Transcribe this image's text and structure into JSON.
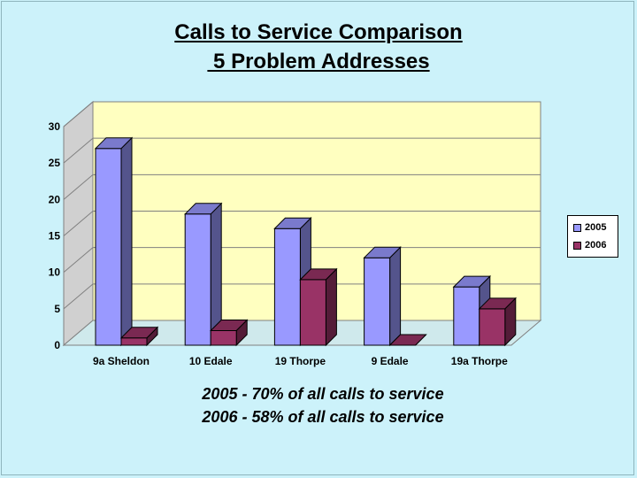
{
  "chart_data": {
    "type": "bar",
    "title_line1": "Calls to Service Comparison",
    "title_line2": " 5 Problem Addresses",
    "categories": [
      "9a Sheldon",
      "10 Edale",
      "19 Thorpe",
      "9 Edale",
      "19a Thorpe"
    ],
    "series": [
      {
        "name": "2005",
        "values": [
          27,
          18,
          16,
          12,
          8
        ],
        "color": "#9999ff"
      },
      {
        "name": "2006",
        "values": [
          1,
          2,
          9,
          0,
          5
        ],
        "color": "#993366"
      }
    ],
    "ylim": [
      0,
      30
    ],
    "yticks": [
      0,
      5,
      10,
      15,
      20,
      25,
      30
    ],
    "grid": true,
    "legend_position": "right",
    "plot_background": "#ffffc0"
  },
  "notes": {
    "line1": "2005 - 70% of all calls to service",
    "line2": "2006 - 58% of all calls to service"
  }
}
